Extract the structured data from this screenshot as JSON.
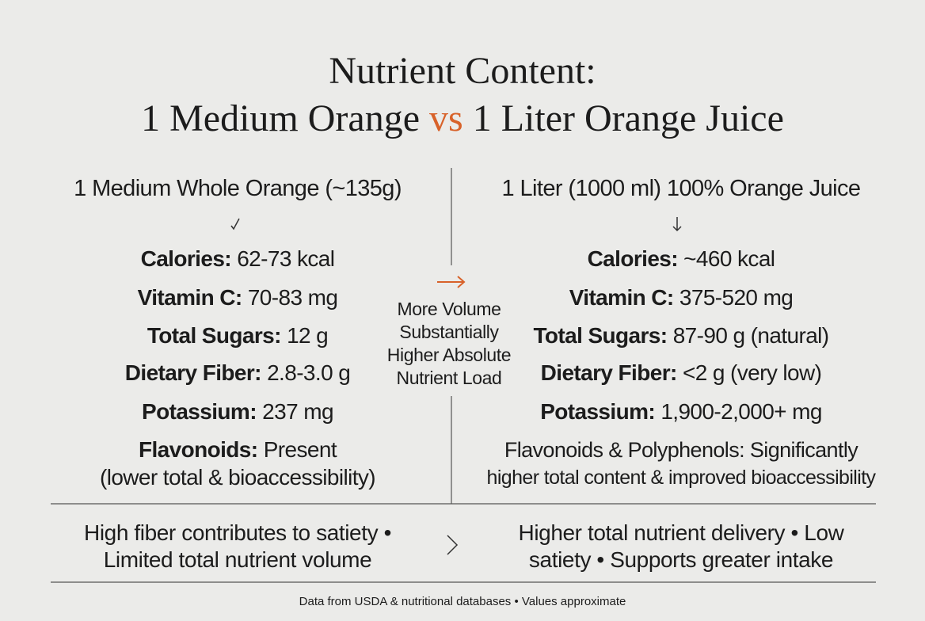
{
  "title": {
    "line1": "Nutrient Content:",
    "left": "1 Medium Orange",
    "vs": "vs",
    "right": "1 Liter Orange Juice"
  },
  "left": {
    "heading": "1 Medium Whole Orange (~135g)",
    "items": [
      {
        "label": "Calories:",
        "value": "62-73 kcal"
      },
      {
        "label": "Vitamin C:",
        "value": "70-83 mg"
      },
      {
        "label": "Total Sugars:",
        "value": "12 g"
      },
      {
        "label": "Dietary Fiber:",
        "value": "2.8-3.0 g"
      },
      {
        "label": "Potassium:",
        "value": "237 mg"
      },
      {
        "label": "Flavonoids:",
        "value": "Present"
      }
    ],
    "note": "(lower total & bioaccessibility)",
    "summary": [
      "High fiber contributes to satiety •",
      "Limited total nutrient volume"
    ]
  },
  "middle": {
    "lines": [
      "More Volume",
      "Substantially",
      "Higher Absolute",
      "Nutrient Load"
    ]
  },
  "right": {
    "heading": "1 Liter (1000 ml) 100% Orange Juice",
    "items": [
      {
        "label": "Calories:",
        "value": "~460 kcal"
      },
      {
        "label": "Vitamin C:",
        "value": "375-520 mg"
      },
      {
        "label": "Total Sugars:",
        "value": "87-90 g (natural)"
      },
      {
        "label": "Dietary Fiber:",
        "value": "<2 g (very low)"
      },
      {
        "label": "Potassium:",
        "value": "1,900-2,000+ mg"
      }
    ],
    "note": [
      "Flavonoids & Polyphenols: Significantly",
      "higher total content & improved bioaccessibility"
    ],
    "summary": [
      "Higher total nutrient delivery • Low",
      "satiety • Supports greater intake"
    ]
  },
  "footer": "Data from USDA & nutritional databases • Values approximate"
}
